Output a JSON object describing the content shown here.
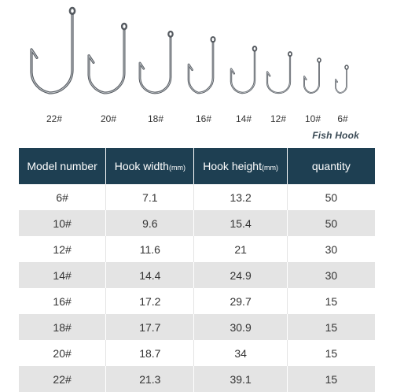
{
  "hooks": {
    "labels": [
      "22#",
      "20#",
      "18#",
      "16#",
      "14#",
      "12#",
      "10#",
      "6#"
    ],
    "brand": "Fish Hook"
  },
  "table": {
    "headers": {
      "model": "Model number",
      "width": "Hook width",
      "width_unit": "(mm)",
      "height": "Hook height",
      "height_unit": "(mm)",
      "quantity": "quantity"
    },
    "rows": [
      {
        "model": "6#",
        "width": "7.1",
        "height": "13.2",
        "quantity": "50"
      },
      {
        "model": "10#",
        "width": "9.6",
        "height": "15.4",
        "quantity": "50"
      },
      {
        "model": "12#",
        "width": "11.6",
        "height": "21",
        "quantity": "30"
      },
      {
        "model": "14#",
        "width": "14.4",
        "height": "24.9",
        "quantity": "30"
      },
      {
        "model": "16#",
        "width": "17.2",
        "height": "29.7",
        "quantity": "15"
      },
      {
        "model": "18#",
        "width": "17.7",
        "height": "30.9",
        "quantity": "15"
      },
      {
        "model": "20#",
        "width": "18.7",
        "height": "34",
        "quantity": "15"
      },
      {
        "model": "22#",
        "width": "21.3",
        "height": "39.1",
        "quantity": "15"
      }
    ]
  },
  "colors": {
    "header_bg": "#1e3f52",
    "stripe": "#e4e4e4",
    "hook_metal": "#555a60"
  }
}
